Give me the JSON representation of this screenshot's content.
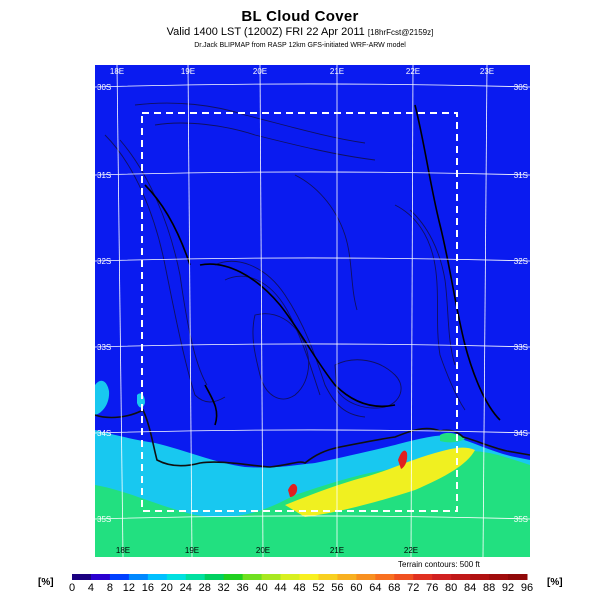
{
  "header": {
    "title": "BL Cloud Cover",
    "subtitle_main": "Valid 1400 LST (1200Z) FRI 22 Apr 2011",
    "subtitle_small": "[18hrFcst@2159z]",
    "credit": "Dr.Jack BLIPMAP from RASP 12km GFS-initiated WRF-ARW model"
  },
  "map": {
    "lon_top_labels": [
      "18E",
      "19E",
      "20E",
      "21E",
      "22E",
      "23E"
    ],
    "lon_bottom_labels": [
      "18E",
      "19E",
      "20E",
      "21E",
      "22E"
    ],
    "lat_left_labels": [
      "30S",
      "31S",
      "32S",
      "33S",
      "34S",
      "35S"
    ],
    "lat_right_labels": [
      "30S",
      "31S",
      "32S",
      "33S",
      "34S",
      "35S"
    ],
    "terrain_note": "Terrain contours: 500 ft",
    "colors": {
      "sea_and_clear": "#0a1bf0",
      "low_cloud": "#18c8f0",
      "mid_cloud": "#22e080",
      "high_cloud": "#f0f020",
      "peak_cloud": "#e02020"
    }
  },
  "colorbar": {
    "unit_left": "[%]",
    "unit_right": "[%]",
    "ticks": [
      "0",
      "4",
      "8",
      "12",
      "16",
      "20",
      "24",
      "28",
      "32",
      "36",
      "40",
      "44",
      "48",
      "52",
      "56",
      "60",
      "64",
      "68",
      "72",
      "76",
      "80",
      "84",
      "88",
      "92",
      "96"
    ],
    "colors": [
      "#1a0080",
      "#2a00d0",
      "#0040ff",
      "#0088ff",
      "#00c0ff",
      "#00e0e0",
      "#00e0a0",
      "#00d060",
      "#20d020",
      "#70e020",
      "#a8e820",
      "#d8f020",
      "#f8f020",
      "#f8d020",
      "#f8b020",
      "#f89020",
      "#f87020",
      "#f05020",
      "#e03020",
      "#d02020",
      "#c01818",
      "#b01010",
      "#a00c0c",
      "#900808"
    ]
  }
}
